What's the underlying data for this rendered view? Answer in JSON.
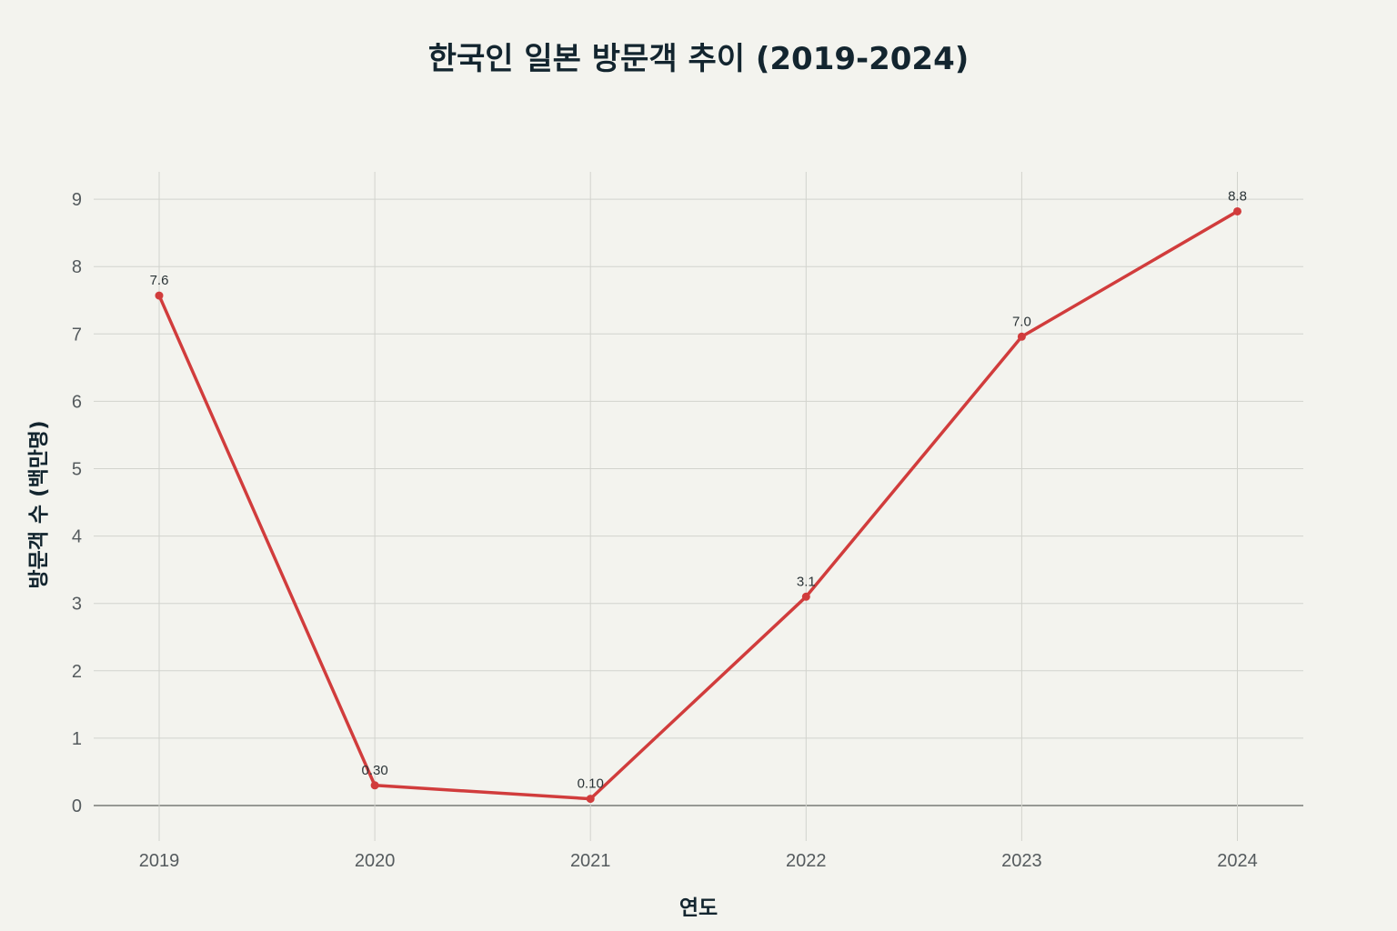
{
  "chart_data": {
    "type": "line",
    "title": "한국인 일본 방문객 추이 (2019-2024)",
    "xlabel": "연도",
    "ylabel": "방문객 수 (백만명)",
    "categories": [
      "2019",
      "2020",
      "2021",
      "2022",
      "2023",
      "2024"
    ],
    "values": [
      7.57,
      0.3,
      0.1,
      3.1,
      6.96,
      8.82
    ],
    "data_labels": [
      "7.6",
      "0.30",
      "0.10",
      "3.1",
      "7.0",
      "8.8"
    ],
    "yticks": [
      "0",
      "1",
      "2",
      "3",
      "4",
      "5",
      "6",
      "7",
      "8",
      "9"
    ],
    "ylim": [
      -0.5,
      9.4
    ],
    "grid": true,
    "line_color": "#d13c3c",
    "marker_color": "#d13c3c"
  }
}
